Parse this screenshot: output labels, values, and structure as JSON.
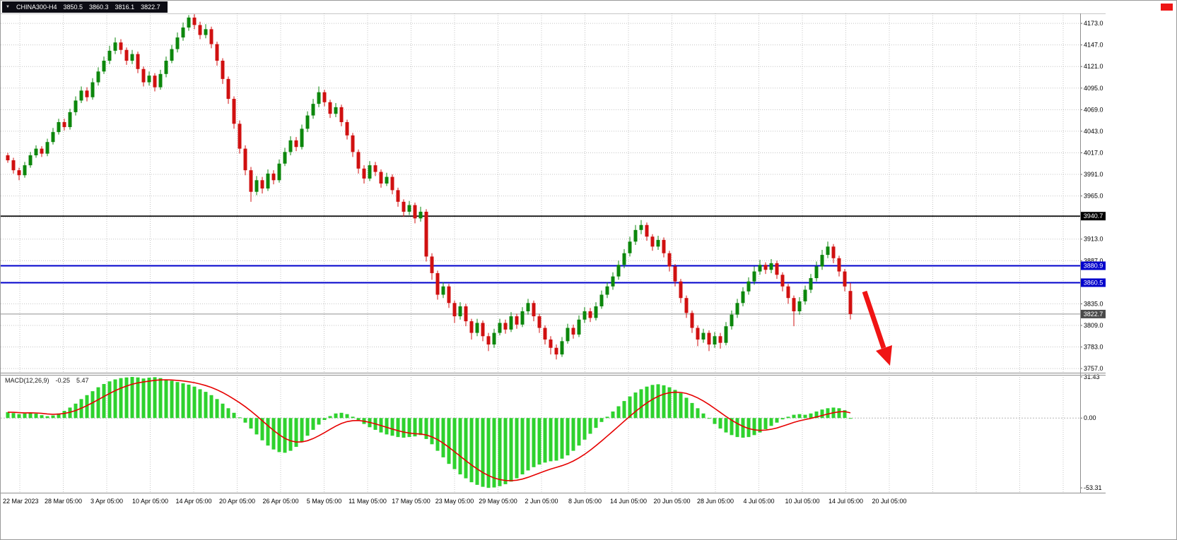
{
  "title_bar": {
    "symbol": "CHINA300-H4",
    "open": "3850.5",
    "high": "3860.3",
    "low": "3816.1",
    "close": "3822.7"
  },
  "macd_panel": {
    "label": "MACD(12,26,9)",
    "main_value": "-0.25",
    "signal_value": "5.47"
  },
  "colors": {
    "bull": "#0c870c",
    "bear": "#d01010",
    "grid": "#c4c4c4",
    "hline_black": "#000000",
    "hline_blue": "#0000cc",
    "current_price": "#909090",
    "macd_hist": "#2ed22e",
    "macd_signal": "#e60000",
    "arrow": "#f01414",
    "badge_dark": "#4a4a4a"
  },
  "annotations": {
    "arrow": {
      "shape": "arrow-down-right",
      "color": "#f01414"
    }
  },
  "chart_data": {
    "type": "candlestick",
    "symbol": "CHINA300-H4",
    "timeframe": "H4",
    "ylim": [
      3752,
      4185
    ],
    "price_axis": {
      "ticks": [
        {
          "value": 4173,
          "label": "4173.0"
        },
        {
          "value": 4147,
          "label": "4147.0"
        },
        {
          "value": 4121,
          "label": "4121.0"
        },
        {
          "value": 4095,
          "label": "4095.0"
        },
        {
          "value": 4069,
          "label": "4069.0"
        },
        {
          "value": 4043,
          "label": "4043.0"
        },
        {
          "value": 4017,
          "label": "4017.0"
        },
        {
          "value": 3991,
          "label": "3991.0"
        },
        {
          "value": 3965,
          "label": "3965.0"
        },
        {
          "value": 3939,
          "label": null
        },
        {
          "value": 3913,
          "label": "3913.0"
        },
        {
          "value": 3887,
          "label": "3887.0"
        },
        {
          "value": 3861,
          "label": null
        },
        {
          "value": 3835,
          "label": "3835.0"
        },
        {
          "value": 3809,
          "label": "3809.0"
        },
        {
          "value": 3783,
          "label": "3783.0"
        },
        {
          "value": 3757,
          "label": "3757.0"
        }
      ]
    },
    "time_axis": {
      "labels": [
        "22 Mar 2023",
        "28 Mar 05:00",
        "3 Apr 05:00",
        "10 Apr 05:00",
        "14 Apr 05:00",
        "20 Apr 05:00",
        "26 Apr 05:00",
        "5 May 05:00",
        "11 May 05:00",
        "17 May 05:00",
        "23 May 05:00",
        "29 May 05:00",
        "2 Jun 05:00",
        "8 Jun 05:00",
        "14 Jun 05:00",
        "20 Jun 05:00",
        "28 Jun 05:00",
        "4 Jul 05:00",
        "10 Jul 05:00",
        "14 Jul 05:00",
        "20 Jul 05:00"
      ]
    },
    "hlines": [
      {
        "value": 3940.7,
        "label": "3940.7",
        "color": "#000000",
        "badge": "#000000",
        "width": 1.6
      },
      {
        "value": 3880.9,
        "label": "3880.9",
        "color": "#0000cc",
        "badge": "#0000cc",
        "width": 2
      },
      {
        "value": 3860.5,
        "label": "3860.5",
        "color": "#0000cc",
        "badge": "#0000cc",
        "width": 2
      },
      {
        "value": 3822.7,
        "label": "3822.7",
        "color": "#909090",
        "badge": "#4a4a4a",
        "width": 1
      }
    ],
    "candles": [
      [
        4014,
        4017,
        4005,
        4008
      ],
      [
        4008,
        4011,
        3992,
        3996
      ],
      [
        3996,
        3999,
        3984,
        3990
      ],
      [
        3990,
        4006,
        3987,
        4002
      ],
      [
        4002,
        4018,
        3999,
        4014
      ],
      [
        4014,
        4026,
        4011,
        4022
      ],
      [
        4022,
        4025,
        4012,
        4016
      ],
      [
        4016,
        4034,
        4013,
        4030
      ],
      [
        4030,
        4047,
        4027,
        4042
      ],
      [
        4042,
        4058,
        4039,
        4054
      ],
      [
        4054,
        4058,
        4044,
        4048
      ],
      [
        4048,
        4070,
        4045,
        4066
      ],
      [
        4066,
        4085,
        4062,
        4080
      ],
      [
        4080,
        4097,
        4077,
        4092
      ],
      [
        4092,
        4096,
        4079,
        4084
      ],
      [
        4084,
        4107,
        4081,
        4102
      ],
      [
        4102,
        4120,
        4098,
        4115
      ],
      [
        4115,
        4133,
        4112,
        4128
      ],
      [
        4128,
        4146,
        4124,
        4140
      ],
      [
        4140,
        4156,
        4136,
        4150
      ],
      [
        4150,
        4154,
        4136,
        4141
      ],
      [
        4141,
        4144,
        4123,
        4128
      ],
      [
        4128,
        4141,
        4124,
        4136
      ],
      [
        4136,
        4139,
        4113,
        4118
      ],
      [
        4118,
        4121,
        4097,
        4102
      ],
      [
        4102,
        4115,
        4098,
        4110
      ],
      [
        4110,
        4113,
        4091,
        4096
      ],
      [
        4096,
        4117,
        4093,
        4112
      ],
      [
        4112,
        4133,
        4108,
        4128
      ],
      [
        4128,
        4147,
        4125,
        4142
      ],
      [
        4142,
        4162,
        4138,
        4156
      ],
      [
        4156,
        4174,
        4152,
        4168
      ],
      [
        4168,
        4183,
        4164,
        4180
      ],
      [
        4180,
        4184,
        4166,
        4171
      ],
      [
        4171,
        4175,
        4154,
        4159
      ],
      [
        4159,
        4172,
        4155,
        4166
      ],
      [
        4166,
        4169,
        4143,
        4148
      ],
      [
        4148,
        4151,
        4122,
        4128
      ],
      [
        4128,
        4131,
        4100,
        4106
      ],
      [
        4106,
        4109,
        4076,
        4082
      ],
      [
        4082,
        4085,
        4046,
        4052
      ],
      [
        4052,
        4056,
        4016,
        4022
      ],
      [
        4022,
        4026,
        3990,
        3996
      ],
      [
        3996,
        4000,
        3958,
        3970
      ],
      [
        3970,
        3989,
        3966,
        3984
      ],
      [
        3984,
        3988,
        3968,
        3974
      ],
      [
        3974,
        3997,
        3971,
        3992
      ],
      [
        3992,
        3996,
        3979,
        3984
      ],
      [
        3984,
        4009,
        3981,
        4004
      ],
      [
        4004,
        4023,
        4001,
        4018
      ],
      [
        4018,
        4037,
        4014,
        4032
      ],
      [
        4032,
        4036,
        4019,
        4024
      ],
      [
        4024,
        4051,
        4021,
        4046
      ],
      [
        4046,
        4067,
        4042,
        4062
      ],
      [
        4062,
        4082,
        4058,
        4076
      ],
      [
        4076,
        4097,
        4072,
        4090
      ],
      [
        4090,
        4093,
        4073,
        4078
      ],
      [
        4078,
        4081,
        4059,
        4064
      ],
      [
        4064,
        4077,
        4060,
        4072
      ],
      [
        4072,
        4075,
        4049,
        4054
      ],
      [
        4054,
        4057,
        4033,
        4038
      ],
      [
        4038,
        4041,
        4012,
        4018
      ],
      [
        4018,
        4021,
        3992,
        3998
      ],
      [
        3998,
        4002,
        3980,
        3986
      ],
      [
        3986,
        4007,
        3983,
        4002
      ],
      [
        4002,
        4006,
        3989,
        3994
      ],
      [
        3994,
        3997,
        3975,
        3980
      ],
      [
        3980,
        3993,
        3977,
        3988
      ],
      [
        3988,
        3991,
        3967,
        3972
      ],
      [
        3972,
        3975,
        3952,
        3958
      ],
      [
        3958,
        3961,
        3940,
        3946
      ],
      [
        3946,
        3959,
        3942,
        3954
      ],
      [
        3954,
        3957,
        3932,
        3938
      ],
      [
        3938,
        3952,
        3934,
        3946
      ],
      [
        3946,
        3949,
        3886,
        3892
      ],
      [
        3892,
        3896,
        3864,
        3872
      ],
      [
        3872,
        3875,
        3840,
        3846
      ],
      [
        3846,
        3861,
        3842,
        3856
      ],
      [
        3856,
        3859,
        3830,
        3836
      ],
      [
        3836,
        3839,
        3812,
        3820
      ],
      [
        3820,
        3837,
        3816,
        3832
      ],
      [
        3832,
        3835,
        3808,
        3814
      ],
      [
        3814,
        3817,
        3792,
        3800
      ],
      [
        3800,
        3817,
        3796,
        3812
      ],
      [
        3812,
        3815,
        3790,
        3796
      ],
      [
        3796,
        3800,
        3778,
        3786
      ],
      [
        3786,
        3805,
        3782,
        3800
      ],
      [
        3800,
        3817,
        3797,
        3812
      ],
      [
        3812,
        3816,
        3799,
        3804
      ],
      [
        3804,
        3825,
        3801,
        3820
      ],
      [
        3820,
        3823,
        3805,
        3810
      ],
      [
        3810,
        3831,
        3807,
        3826
      ],
      [
        3826,
        3841,
        3822,
        3836
      ],
      [
        3836,
        3839,
        3814,
        3820
      ],
      [
        3820,
        3823,
        3800,
        3806
      ],
      [
        3806,
        3809,
        3786,
        3792
      ],
      [
        3792,
        3796,
        3774,
        3782
      ],
      [
        3782,
        3786,
        3768,
        3774
      ],
      [
        3774,
        3795,
        3771,
        3790
      ],
      [
        3790,
        3811,
        3787,
        3806
      ],
      [
        3806,
        3810,
        3793,
        3798
      ],
      [
        3798,
        3821,
        3795,
        3816
      ],
      [
        3816,
        3831,
        3812,
        3826
      ],
      [
        3826,
        3830,
        3813,
        3818
      ],
      [
        3818,
        3837,
        3815,
        3832
      ],
      [
        3832,
        3851,
        3829,
        3846
      ],
      [
        3846,
        3861,
        3842,
        3856
      ],
      [
        3856,
        3873,
        3852,
        3868
      ],
      [
        3868,
        3887,
        3864,
        3882
      ],
      [
        3882,
        3901,
        3878,
        3896
      ],
      [
        3896,
        3916,
        3892,
        3910
      ],
      [
        3910,
        3930,
        3906,
        3924
      ],
      [
        3924,
        3936,
        3919,
        3930
      ],
      [
        3930,
        3933,
        3911,
        3916
      ],
      [
        3916,
        3919,
        3899,
        3904
      ],
      [
        3904,
        3917,
        3900,
        3912
      ],
      [
        3912,
        3915,
        3891,
        3896
      ],
      [
        3896,
        3899,
        3874,
        3880
      ],
      [
        3880,
        3883,
        3856,
        3862
      ],
      [
        3862,
        3865,
        3836,
        3842
      ],
      [
        3842,
        3845,
        3818,
        3824
      ],
      [
        3824,
        3827,
        3800,
        3806
      ],
      [
        3806,
        3809,
        3784,
        3792
      ],
      [
        3792,
        3805,
        3788,
        3800
      ],
      [
        3800,
        3803,
        3778,
        3786
      ],
      [
        3786,
        3801,
        3782,
        3796
      ],
      [
        3796,
        3800,
        3781,
        3788
      ],
      [
        3788,
        3813,
        3785,
        3808
      ],
      [
        3808,
        3827,
        3804,
        3822
      ],
      [
        3822,
        3841,
        3818,
        3836
      ],
      [
        3836,
        3855,
        3832,
        3850
      ],
      [
        3850,
        3867,
        3846,
        3862
      ],
      [
        3862,
        3880,
        3858,
        3874
      ],
      [
        3874,
        3888,
        3870,
        3882
      ],
      [
        3882,
        3885,
        3871,
        3876
      ],
      [
        3876,
        3889,
        3872,
        3884
      ],
      [
        3884,
        3887,
        3865,
        3870
      ],
      [
        3870,
        3873,
        3850,
        3856
      ],
      [
        3856,
        3859,
        3835,
        3842
      ],
      [
        3842,
        3845,
        3808,
        3826
      ],
      [
        3826,
        3843,
        3822,
        3838
      ],
      [
        3838,
        3857,
        3834,
        3852
      ],
      [
        3852,
        3871,
        3848,
        3866
      ],
      [
        3866,
        3886,
        3862,
        3880
      ],
      [
        3880,
        3900,
        3876,
        3894
      ],
      [
        3894,
        3910,
        3890,
        3904
      ],
      [
        3904,
        3907,
        3884,
        3890
      ],
      [
        3890,
        3893,
        3868,
        3874
      ],
      [
        3874,
        3877,
        3850,
        3856
      ],
      [
        3850.5,
        3860.3,
        3816.1,
        3822.7
      ]
    ],
    "indicator": {
      "name": "MACD",
      "params": "12,26,9",
      "ylim": [
        -57,
        33
      ],
      "axis_labels": [
        "31.43",
        "0.00",
        "-53.31"
      ],
      "last_main": -0.25,
      "last_signal": 5.47,
      "histogram": [
        4.5,
        3.8,
        3.0,
        3.5,
        4.2,
        3.4,
        2.2,
        1.4,
        2.0,
        3.5,
        5.5,
        8.0,
        11.0,
        14.5,
        17.5,
        20.5,
        23.5,
        26.0,
        28.0,
        29.5,
        30.5,
        31.0,
        31.4,
        31.0,
        30.2,
        30.8,
        31.2,
        30.5,
        29.5,
        28.5,
        27.5,
        26.5,
        25.5,
        24.0,
        22.0,
        20.0,
        17.5,
        14.5,
        11.0,
        7.5,
        4.0,
        0.5,
        -3.5,
        -8.0,
        -12.5,
        -17.0,
        -21.0,
        -24.0,
        -26.0,
        -26.5,
        -25.0,
        -22.0,
        -18.0,
        -13.5,
        -9.0,
        -5.0,
        -1.5,
        1.5,
        3.5,
        4.0,
        3.0,
        1.0,
        -1.5,
        -4.5,
        -7.0,
        -9.0,
        -11.0,
        -12.5,
        -13.5,
        -14.5,
        -15.0,
        -14.5,
        -14.0,
        -13.0,
        -16.0,
        -20.0,
        -25.0,
        -30.0,
        -35.0,
        -39.0,
        -43.0,
        -46.0,
        -49.0,
        -51.0,
        -52.5,
        -53.3,
        -53.0,
        -52.0,
        -50.5,
        -48.5,
        -46.0,
        -43.0,
        -40.0,
        -37.5,
        -35.5,
        -34.0,
        -33.0,
        -32.5,
        -31.0,
        -28.5,
        -25.0,
        -21.0,
        -16.5,
        -12.0,
        -7.5,
        -3.0,
        1.0,
        5.0,
        9.0,
        13.0,
        16.5,
        19.5,
        22.0,
        24.0,
        25.3,
        25.8,
        25.0,
        23.5,
        21.5,
        19.0,
        15.5,
        11.5,
        7.5,
        3.5,
        -0.5,
        -4.5,
        -8.0,
        -11.0,
        -13.0,
        -14.5,
        -15.0,
        -14.5,
        -13.0,
        -11.0,
        -8.5,
        -6.0,
        -3.5,
        -1.0,
        1.0,
        2.5,
        3.0,
        2.5,
        3.5,
        5.0,
        6.5,
        7.5,
        8.0,
        7.5,
        6.0,
        -0.25
      ]
    }
  }
}
